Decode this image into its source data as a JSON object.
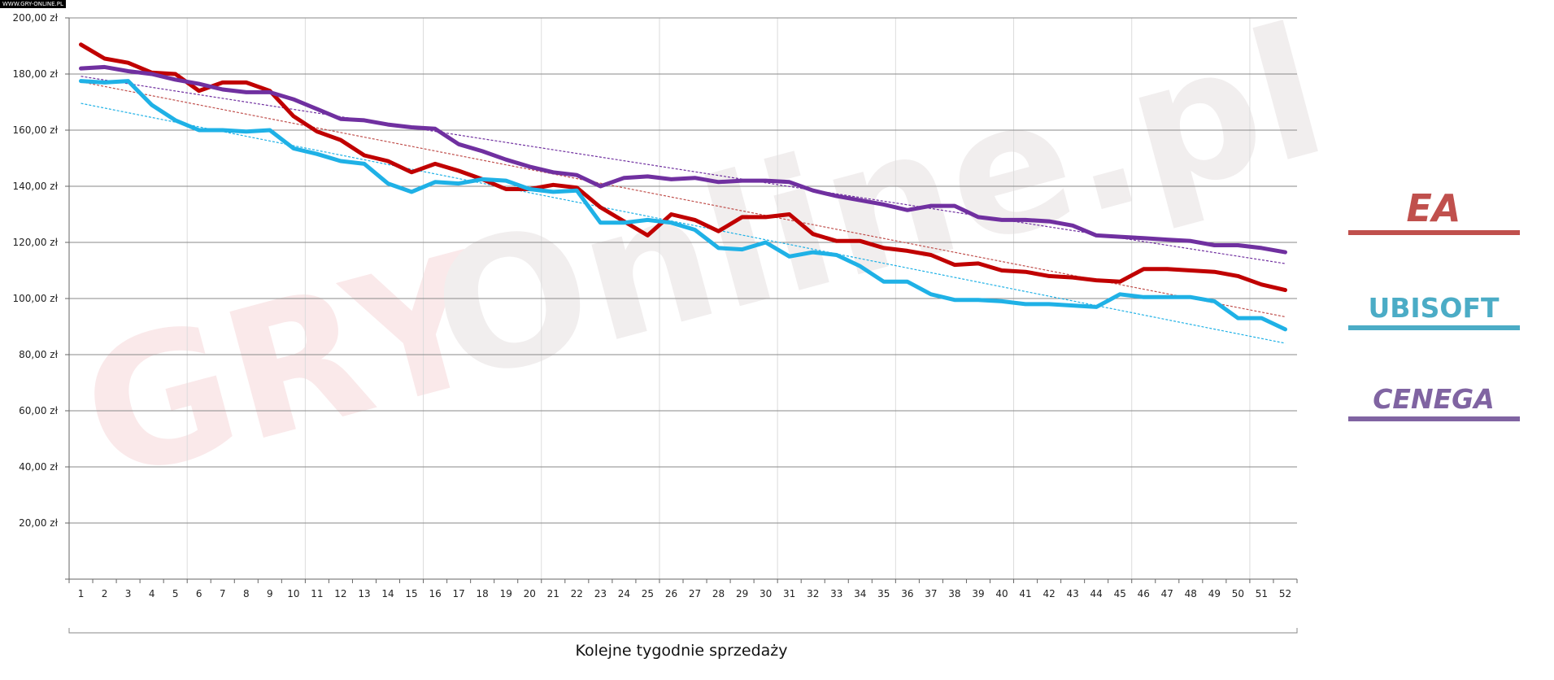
{
  "site_badge": "WWW.GRY-ONLINE.PL",
  "watermark": {
    "part1": "GRY",
    "part2": "Online.pl"
  },
  "legend": [
    {
      "name": "EA",
      "color": "#c0504d"
    },
    {
      "name": "UBISOFT",
      "color": "#4bacc6"
    },
    {
      "name": "CENEGA",
      "color": "#8064a2"
    }
  ],
  "chart_data": {
    "type": "line",
    "title": "",
    "xlabel": "Kolejne tygodnie sprzedaży",
    "ylabel": "",
    "ylim": [
      0,
      200
    ],
    "yticks": [
      "",
      "20,00 zł",
      "40,00 zł",
      "60,00 zł",
      "80,00 zł",
      "100,00 zł",
      "120,00 zł",
      "140,00 zł",
      "160,00 zł",
      "180,00 zł",
      "200,00 zł"
    ],
    "x": [
      1,
      2,
      3,
      4,
      5,
      6,
      7,
      8,
      9,
      10,
      11,
      12,
      13,
      14,
      15,
      16,
      17,
      18,
      19,
      20,
      21,
      22,
      23,
      24,
      25,
      26,
      27,
      28,
      29,
      30,
      31,
      32,
      33,
      34,
      35,
      36,
      37,
      38,
      39,
      40,
      41,
      42,
      43,
      44,
      45,
      46,
      47,
      48,
      49,
      50,
      51,
      52
    ],
    "grid": true,
    "legend_position": "right",
    "series": [
      {
        "name": "EA",
        "color": "#c00000",
        "trend_color": "#c0504d",
        "values": [
          190.5,
          185.5,
          184,
          180.5,
          180,
          174,
          177,
          177,
          174,
          165,
          159.5,
          156.5,
          151,
          149,
          145,
          148,
          145.5,
          142.5,
          139,
          139,
          140.5,
          139.5,
          132.5,
          127.5,
          122.5,
          130,
          128,
          124,
          129,
          129,
          130,
          123,
          120.5,
          120.5,
          118,
          117,
          115.5,
          112,
          112.5,
          110,
          109.5,
          108,
          107.5,
          106.5,
          106,
          110.5,
          110.5,
          110,
          109.5,
          108,
          105,
          103
        ]
      },
      {
        "name": "UBISOFT",
        "color": "#1fb1e6",
        "trend_color": "#1fb1e6",
        "values": [
          177.5,
          177,
          177.5,
          169,
          163.5,
          160,
          160,
          159.5,
          160,
          153.5,
          151.5,
          149,
          148,
          141,
          138,
          141.5,
          141,
          142.5,
          142,
          139,
          138,
          138.5,
          127,
          127,
          128,
          127,
          124.5,
          118,
          117.5,
          120,
          115,
          116.5,
          115.5,
          111.5,
          106,
          106,
          101.5,
          99.5,
          99.5,
          99,
          98,
          98,
          97.5,
          97,
          101.5,
          100.5,
          100.5,
          100.5,
          99,
          93,
          93,
          89
        ]
      },
      {
        "name": "CENEGA",
        "color": "#7030a0",
        "trend_color": "#7030a0",
        "values": [
          182,
          182.5,
          181,
          180,
          178,
          176.5,
          174.5,
          173.5,
          173.5,
          171,
          167.5,
          164,
          163.5,
          162,
          161,
          160.5,
          155,
          152.5,
          149.5,
          147,
          145,
          144,
          140,
          143,
          143.5,
          142.5,
          143,
          141.5,
          142,
          142,
          141.5,
          138.5,
          136.5,
          135,
          133.5,
          131.5,
          133,
          133,
          129,
          128,
          128,
          127.5,
          126,
          122.5,
          122,
          121.5,
          121,
          120.5,
          119,
          119,
          118,
          116.5
        ]
      }
    ]
  }
}
